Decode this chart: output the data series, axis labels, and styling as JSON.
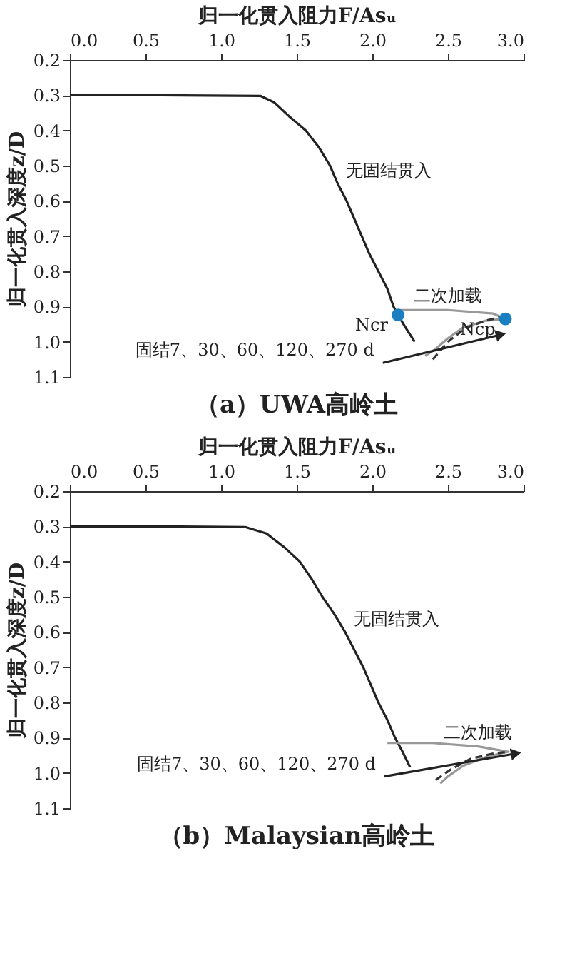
{
  "chart_data": [
    {
      "type": "line",
      "title": "（a）UWA高岭土",
      "xlabel": "归一化贯入阻力F/Asᵤ",
      "ylabel": "归一化贯入深度z/D",
      "xlim": [
        0,
        3.0
      ],
      "xticks": [
        {
          "value": 0,
          "label": "0.0"
        },
        0.5,
        {
          "value": 1,
          "label": "1.0"
        },
        1.5,
        {
          "value": 2,
          "label": "2.0"
        },
        2.5,
        {
          "value": 3,
          "label": "3.0"
        }
      ],
      "ylim": [
        1.1,
        0.2
      ],
      "yticks": [
        0.2,
        0.3,
        0.4,
        0.5,
        0.6,
        0.7,
        0.8,
        0.9,
        {
          "value": 1,
          "label": "1.0"
        },
        1.1
      ],
      "grid": false,
      "series": [
        {
          "color": "#222222",
          "x": [
            0,
            0.6,
            1.26,
            1.35,
            1.45,
            1.56,
            1.65,
            1.72,
            1.77,
            1.83,
            1.88,
            1.93,
            1.98,
            2.04,
            2.1,
            2.14,
            2.17,
            2.22,
            2.28
          ],
          "values": [
            0.3,
            0.3,
            0.302,
            0.32,
            0.36,
            0.4,
            0.45,
            0.5,
            0.55,
            0.6,
            0.65,
            0.7,
            0.75,
            0.8,
            0.85,
            0.9,
            0.924,
            0.96,
            1.0
          ]
        },
        {
          "color": "#999999",
          "x": [
            2.17,
            2.5,
            2.8,
            2.88,
            2.75,
            2.6,
            2.5,
            2.42,
            2.35
          ],
          "values": [
            0.91,
            0.91,
            0.92,
            0.935,
            0.94,
            0.96,
            0.99,
            1.02,
            1.04
          ]
        },
        {
          "color": "#333333",
          "line_style": "dashed",
          "x": [
            2.4,
            2.5,
            2.62,
            2.75,
            2.85
          ],
          "values": [
            1.05,
            1.0,
            0.96,
            0.94,
            0.93
          ]
        },
        {
          "color": "#222222",
          "marker": "triangle",
          "x": [
            2.07,
            2.85
          ],
          "values": [
            1.06,
            0.98
          ]
        },
        {
          "type": "scatter",
          "color": "#1a7fc1",
          "marker": "circle",
          "x": [
            2.17,
            2.88
          ],
          "values": [
            0.924,
            0.935
          ]
        }
      ],
      "annotations": [
        {
          "text": "无固结贯入",
          "x": 1.77,
          "y": 0.55
        },
        {
          "text": "二次加载",
          "x": 2.5,
          "y": 0.91
        },
        {
          "text": "Ncr",
          "x": 2.17,
          "y": 0.924
        },
        {
          "text": "Ncp",
          "x": 2.88,
          "y": 0.935
        },
        {
          "text": "固结7、30、60、120、270 d",
          "x": 2.07,
          "y": 1.06
        }
      ]
    },
    {
      "type": "line",
      "title": "（b）Malaysian高岭土",
      "xlabel": "归一化贯入阻力F/Asᵤ",
      "ylabel": "归一化贯入深度z/D",
      "xlim": [
        0,
        3.0
      ],
      "xticks": [
        {
          "value": 0,
          "label": "0.0"
        },
        0.5,
        {
          "value": 1,
          "label": "1.0"
        },
        1.5,
        {
          "value": 2,
          "label": "2.0"
        },
        2.5,
        {
          "value": 3,
          "label": "3.0"
        }
      ],
      "ylim": [
        1.1,
        0.2
      ],
      "yticks": [
        0.2,
        0.3,
        0.4,
        0.5,
        0.6,
        0.7,
        0.8,
        0.9,
        {
          "value": 1,
          "label": "1.0"
        },
        1.1
      ],
      "grid": false,
      "series": [
        {
          "color": "#222222",
          "x": [
            0,
            0.6,
            1.16,
            1.3,
            1.42,
            1.52,
            1.6,
            1.67,
            1.75,
            1.82,
            1.88,
            1.94,
            1.99,
            2.04,
            2.1,
            2.15,
            2.2,
            2.25
          ],
          "values": [
            0.3,
            0.3,
            0.302,
            0.32,
            0.36,
            0.4,
            0.45,
            0.5,
            0.55,
            0.6,
            0.65,
            0.7,
            0.75,
            0.8,
            0.85,
            0.9,
            0.94,
            0.984
          ]
        },
        {
          "color": "#999999",
          "x": [
            2.1,
            2.4,
            2.7,
            2.9,
            2.75,
            2.6,
            2.5,
            2.45
          ],
          "values": [
            0.915,
            0.915,
            0.925,
            0.94,
            0.955,
            0.98,
            1.01,
            1.03
          ]
        },
        {
          "color": "#333333",
          "line_style": "dashed",
          "x": [
            2.42,
            2.52,
            2.65,
            2.8,
            2.9
          ],
          "values": [
            1.02,
            0.99,
            0.96,
            0.945,
            0.94
          ]
        },
        {
          "color": "#222222",
          "marker": "triangle",
          "x": [
            2.08,
            2.95
          ],
          "values": [
            1.01,
            0.945
          ]
        }
      ],
      "annotations": [
        {
          "text": "无固结贯入",
          "x": 1.82,
          "y": 0.6
        },
        {
          "text": "二次加载",
          "x": 2.7,
          "y": 0.925
        },
        {
          "text": "固结7、30、60、120、270 d",
          "x": 2.08,
          "y": 1.01
        }
      ]
    }
  ]
}
